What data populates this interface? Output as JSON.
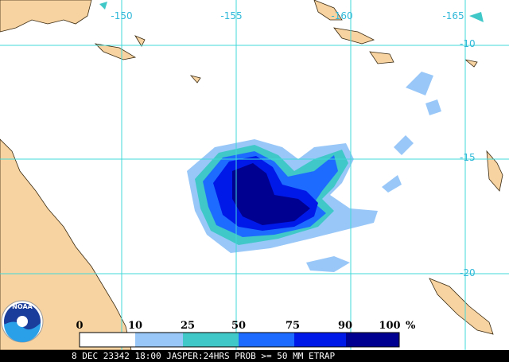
{
  "map": {
    "lon_labels": [
      "-150",
      "-155",
      "-160",
      "-165"
    ],
    "lat_labels": [
      "-10",
      "-15",
      "-20"
    ],
    "logo": "NOAA",
    "legend": {
      "labels": [
        "0",
        "10",
        "25",
        "50",
        "75",
        "90",
        "100"
      ],
      "unit": "%"
    },
    "footer": "8 DEC 23342 18:00 JASPER:24HRS PROB >= 50 MM ETRAP"
  }
}
